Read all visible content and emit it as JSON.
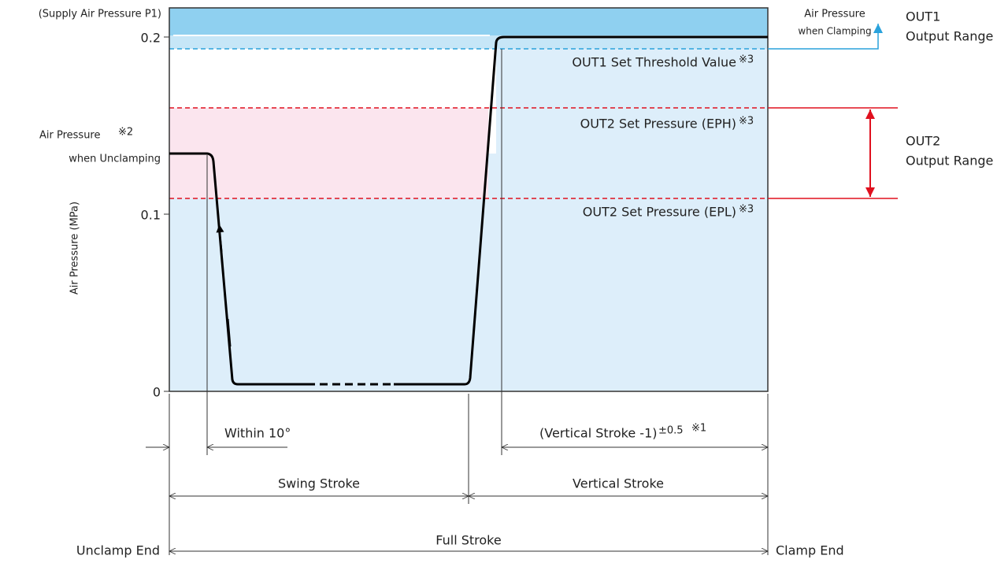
{
  "axis": {
    "y_label": "Air Pressure (MPa)",
    "ticks": [
      "0.2",
      "0.1",
      "0"
    ],
    "supply_label": "(Supply Air Pressure P1)"
  },
  "left_labels": {
    "unclamp_line1": "Air Pressure",
    "unclamp_note": "※2",
    "unclamp_line2": "when Unclamping"
  },
  "thresholds": {
    "out1": "OUT1 Set Threshold Value",
    "eph": "OUT2 Set Pressure (EPH)",
    "epl": "OUT2 Set Pressure (EPL)",
    "note": "※3"
  },
  "right_labels": {
    "clamp_line1": "Air Pressure",
    "clamp_line2": "when Clamping",
    "out1_line1": "OUT1",
    "out1_line2": "Output Range",
    "out2_line1": "OUT2",
    "out2_line2": "Output Range"
  },
  "dimensions": {
    "within": "Within 10°",
    "vertical_minus": "(Vertical Stroke -1)",
    "tolerance": "±0.5",
    "tolerance_note": "※1",
    "swing": "Swing Stroke",
    "vertical": "Vertical Stroke",
    "full": "Full Stroke",
    "unclamp_end": "Unclamp End",
    "clamp_end": "Clamp End"
  }
}
